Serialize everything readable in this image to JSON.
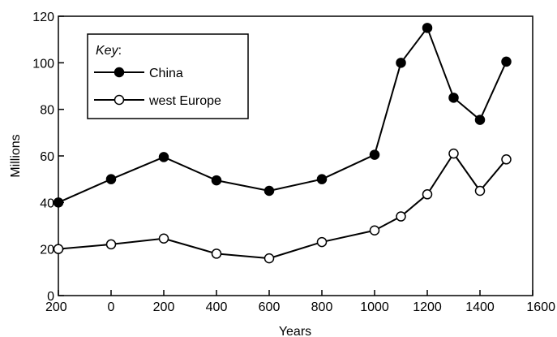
{
  "chart_data": {
    "type": "line",
    "title": "",
    "xlabel": "Years",
    "ylabel": "Millions",
    "xlim": [
      -200,
      1600
    ],
    "ylim": [
      0,
      120
    ],
    "x_ticks": [
      -200,
      0,
      200,
      400,
      600,
      800,
      1000,
      1200,
      1400,
      1600
    ],
    "x_tick_labels": [
      "200",
      "0",
      "200",
      "400",
      "600",
      "800",
      "1000",
      "1200",
      "1400",
      "1600"
    ],
    "y_ticks": [
      0,
      20,
      40,
      60,
      80,
      100,
      120
    ],
    "y_tick_labels": [
      "0",
      "20",
      "40",
      "60",
      "80",
      "100",
      "120"
    ],
    "grid": false,
    "legend": {
      "title": "Key",
      "title_suffix": ":",
      "placement": "top-left"
    },
    "series": [
      {
        "name": "China",
        "marker": "filled-circle",
        "x": [
          -200,
          0,
          200,
          400,
          600,
          800,
          1000,
          1100,
          1200,
          1300,
          1400,
          1500
        ],
        "y": [
          40,
          50,
          59.5,
          49.5,
          45,
          50,
          60.5,
          100,
          115,
          85,
          75.5,
          100.5
        ]
      },
      {
        "name": "west Europe",
        "marker": "open-circle",
        "x": [
          -200,
          0,
          200,
          400,
          600,
          800,
          1000,
          1100,
          1200,
          1300,
          1400,
          1500
        ],
        "y": [
          20,
          22,
          24.5,
          18,
          16,
          23,
          28,
          34,
          43.5,
          61,
          45,
          58.5
        ]
      }
    ]
  }
}
